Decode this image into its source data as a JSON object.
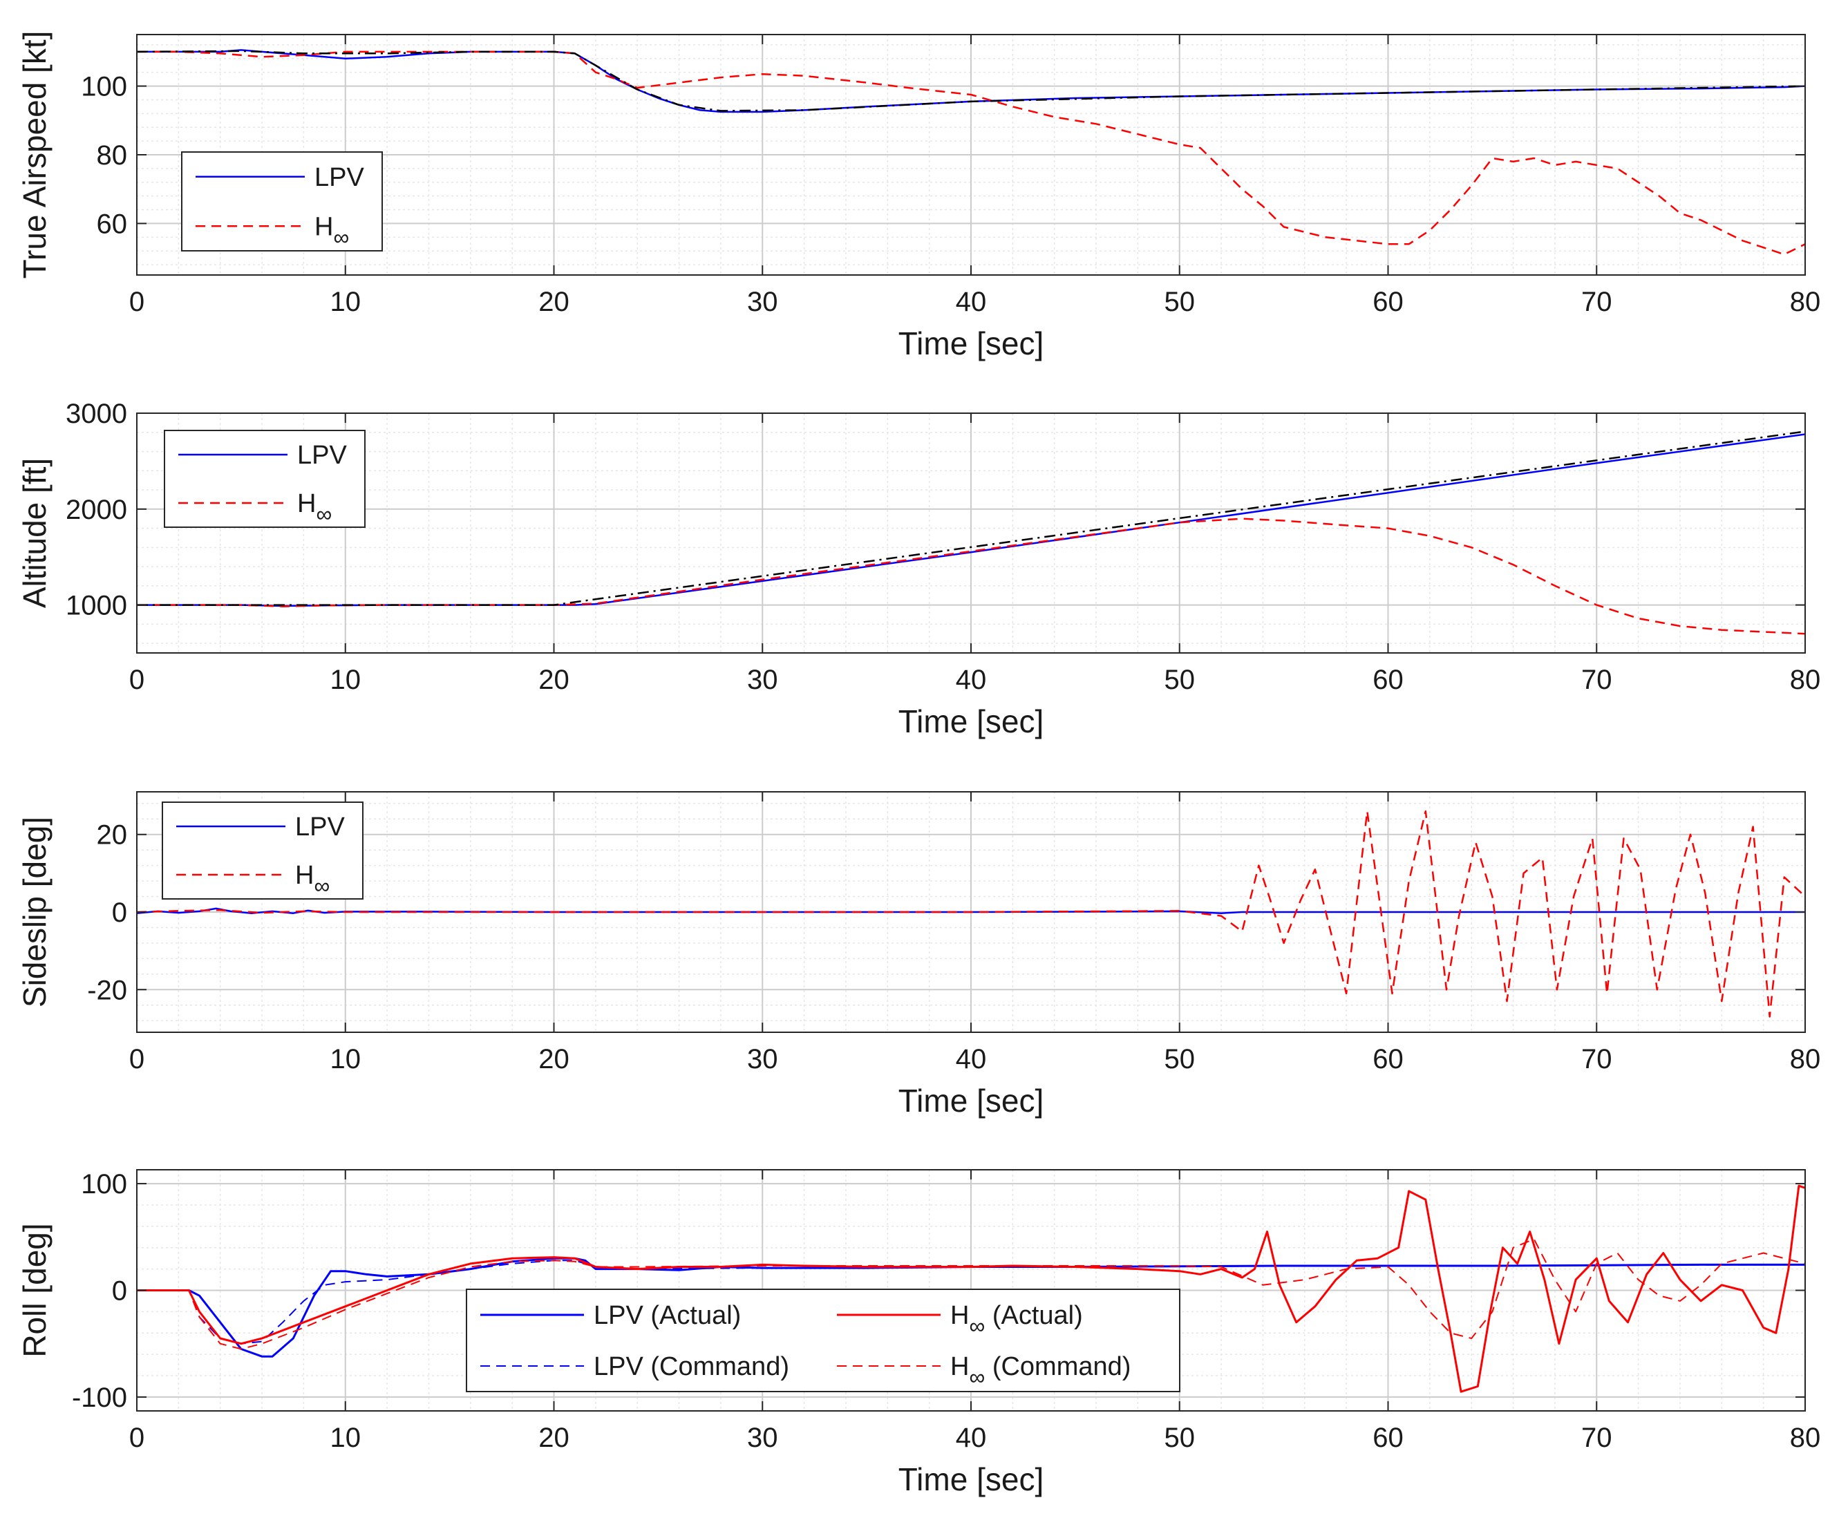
{
  "colors": {
    "lpv": "#0000ff",
    "hinf": "#ff0000",
    "reference": "#000000",
    "grid_major": "#cccccc",
    "grid_minor": "#e6e6e6"
  },
  "chart_data": [
    {
      "type": "line",
      "id": "airspeed",
      "xlabel": "Time [sec]",
      "ylabel": "True Airspeed [kt]",
      "xlim": [
        0,
        80
      ],
      "ylim": [
        45,
        115
      ],
      "xticks": [
        0,
        10,
        20,
        30,
        40,
        50,
        60,
        70,
        80
      ],
      "xtick_labels": [
        "0",
        "10",
        "20",
        "30",
        "40",
        "50",
        "60",
        "70",
        "80"
      ],
      "yticks": [
        60,
        80,
        100
      ],
      "ytick_labels": [
        "60",
        "80",
        "100"
      ],
      "legend": {
        "position": "lower-left",
        "entries": [
          {
            "label": "LPV",
            "series": 0
          },
          {
            "label": "H",
            "sub": "∞",
            "series": 1
          }
        ]
      },
      "series": [
        {
          "name": "LPV",
          "color": "#0000ff",
          "dash": "solid",
          "x": [
            0,
            2,
            4,
            5,
            6,
            8,
            10,
            12,
            14,
            16,
            18,
            20,
            21,
            22,
            23,
            24,
            25,
            26,
            27,
            28,
            30,
            32,
            35,
            40,
            45,
            50,
            55,
            60,
            65,
            70,
            75,
            79,
            80
          ],
          "y": [
            110,
            110,
            110,
            110.5,
            110,
            109,
            108,
            108.5,
            109.5,
            110,
            110,
            110,
            109.5,
            106,
            102,
            99,
            96.5,
            94.5,
            93,
            92.5,
            92.5,
            93,
            94,
            95.5,
            96.5,
            97,
            97.5,
            98,
            98.5,
            99,
            99.3,
            99.7,
            100
          ]
        },
        {
          "name": "H∞",
          "color": "#ff0000",
          "dash": "dashed",
          "x": [
            0,
            2,
            4,
            6,
            8,
            10,
            12,
            14,
            16,
            18,
            20,
            21,
            22,
            23,
            24,
            26,
            28,
            30,
            32,
            35,
            37,
            40,
            42,
            44,
            46,
            48,
            50,
            51,
            52,
            53,
            54,
            55,
            57,
            60,
            61,
            62,
            63,
            64,
            65,
            66,
            67,
            68,
            69,
            70,
            71,
            72,
            73,
            74,
            75,
            76,
            77,
            78,
            79,
            80
          ],
          "y": [
            110,
            110,
            109.5,
            108.5,
            109,
            110,
            110,
            110,
            110,
            110,
            110,
            109.5,
            104,
            102,
            99.5,
            101,
            102.5,
            103.5,
            103,
            101,
            99.5,
            97.5,
            94,
            91,
            89,
            86,
            83,
            82,
            76,
            70,
            65,
            59,
            56,
            54,
            54,
            58,
            64,
            71,
            79,
            78,
            79,
            77,
            78,
            77,
            76,
            72,
            68,
            63,
            61,
            58,
            55,
            53,
            51,
            54
          ]
        },
        {
          "name": "Command",
          "color": "#000000",
          "dash": "dashdot",
          "x": [
            0,
            5,
            8,
            12,
            16,
            20,
            21,
            22,
            24,
            26,
            28,
            32,
            40,
            50,
            60,
            70,
            80
          ],
          "y": [
            110,
            110.2,
            109.5,
            109.5,
            110,
            110,
            109.5,
            106,
            99,
            94.5,
            92.8,
            93,
            95.5,
            97,
            98,
            99,
            100
          ]
        }
      ]
    },
    {
      "type": "line",
      "id": "altitude",
      "xlabel": "Time [sec]",
      "ylabel": "Altitude [ft]",
      "xlim": [
        0,
        80
      ],
      "ylim": [
        500,
        3000
      ],
      "xticks": [
        0,
        10,
        20,
        30,
        40,
        50,
        60,
        70,
        80
      ],
      "xtick_labels": [
        "0",
        "10",
        "20",
        "30",
        "40",
        "50",
        "60",
        "70",
        "80"
      ],
      "yticks": [
        1000,
        2000,
        3000
      ],
      "ytick_labels": [
        "1000",
        "2000",
        "3000"
      ],
      "legend": {
        "position": "upper-left",
        "entries": [
          {
            "label": "LPV",
            "series": 0
          },
          {
            "label": "H",
            "sub": "∞",
            "series": 1
          }
        ]
      },
      "series": [
        {
          "name": "LPV",
          "color": "#0000ff",
          "dash": "solid",
          "x": [
            0,
            5,
            7,
            9,
            12,
            20,
            21,
            22,
            30,
            40,
            50,
            60,
            70,
            80
          ],
          "y": [
            1000,
            1000,
            990,
            995,
            1000,
            1000,
            1000,
            1010,
            1250,
            1550,
            1860,
            2170,
            2480,
            2780
          ]
        },
        {
          "name": "H∞",
          "color": "#ff0000",
          "dash": "dashed",
          "x": [
            0,
            5,
            7,
            9,
            12,
            20,
            22,
            30,
            40,
            50,
            53,
            55,
            58,
            60,
            62,
            64,
            66,
            68,
            70,
            72,
            74,
            76,
            78,
            80
          ],
          "y": [
            1000,
            1000,
            985,
            995,
            1000,
            1000,
            1015,
            1265,
            1560,
            1860,
            1900,
            1880,
            1830,
            1800,
            1720,
            1600,
            1420,
            1200,
            1000,
            860,
            780,
            740,
            720,
            700
          ]
        },
        {
          "name": "Command",
          "color": "#000000",
          "dash": "dashdot",
          "x": [
            0,
            20,
            80
          ],
          "y": [
            1000,
            1000,
            2810
          ]
        }
      ]
    },
    {
      "type": "line",
      "id": "sideslip",
      "xlabel": "Time [sec]",
      "ylabel": "Sideslip [deg]",
      "xlim": [
        0,
        80
      ],
      "ylim": [
        -31,
        31
      ],
      "xticks": [
        0,
        10,
        20,
        30,
        40,
        50,
        60,
        70,
        80
      ],
      "xtick_labels": [
        "0",
        "10",
        "20",
        "30",
        "40",
        "50",
        "60",
        "70",
        "80"
      ],
      "yticks": [
        -20,
        0,
        20
      ],
      "ytick_labels": [
        "-20",
        "0",
        "20"
      ],
      "legend": {
        "position": "upper-left",
        "entries": [
          {
            "label": "LPV",
            "series": 0
          },
          {
            "label": "H",
            "sub": "∞",
            "series": 1
          }
        ]
      },
      "series": [
        {
          "name": "LPV",
          "color": "#0000ff",
          "dash": "solid",
          "x": [
            0,
            1,
            2,
            3,
            3.8,
            4.5,
            5.5,
            6.5,
            7.5,
            8.2,
            9,
            10,
            14,
            20,
            30,
            40,
            50,
            52,
            53,
            80
          ],
          "y": [
            -0.3,
            0.2,
            -0.2,
            0.2,
            0.9,
            0.2,
            -0.3,
            0.2,
            -0.3,
            0.4,
            -0.2,
            0.1,
            0.1,
            0,
            0,
            0,
            0.2,
            -0.3,
            0,
            0
          ]
        },
        {
          "name": "H∞",
          "color": "#ff0000",
          "dash": "dashed",
          "x": [
            0,
            2,
            4,
            6,
            8,
            10,
            20,
            30,
            40,
            50,
            52,
            53,
            53.8,
            54.3,
            55,
            55.8,
            56.5,
            57.2,
            58,
            59,
            60.2,
            61,
            61.8,
            62.8,
            63.4,
            64.2,
            65,
            65.7,
            66.5,
            67.4,
            68.1,
            68.9,
            69.8,
            70.5,
            71.3,
            72.1,
            72.9,
            73.8,
            74.5,
            75.2,
            76,
            76.8,
            77.5,
            78.3,
            79,
            80
          ],
          "y": [
            0,
            0.3,
            0.5,
            -0.2,
            0.2,
            0,
            0,
            0,
            0,
            0.3,
            -1,
            -5,
            12,
            4,
            -8,
            3,
            11,
            -4,
            -21,
            26,
            -21,
            8,
            26,
            -20,
            -1,
            18,
            4,
            -23,
            10,
            14,
            -20,
            4,
            19,
            -21,
            19,
            11,
            -20,
            6,
            20,
            5,
            -23,
            5,
            22,
            -27,
            9,
            4
          ]
        }
      ]
    },
    {
      "type": "line",
      "id": "roll",
      "xlabel": "Time [sec]",
      "ylabel": "Roll [deg]",
      "xlim": [
        0,
        80
      ],
      "ylim": [
        -113,
        113
      ],
      "xticks": [
        0,
        10,
        20,
        30,
        40,
        50,
        60,
        70,
        80
      ],
      "xtick_labels": [
        "0",
        "10",
        "20",
        "30",
        "40",
        "50",
        "60",
        "70",
        "80"
      ],
      "yticks": [
        -100,
        0,
        100
      ],
      "ytick_labels": [
        "-100",
        "0",
        "100"
      ],
      "legend": {
        "position": "lower-center",
        "columns": 2,
        "entries": [
          {
            "label": "LPV (Actual)",
            "series": 0
          },
          {
            "label": "LPV (Command)",
            "series": 1
          },
          {
            "label": "H",
            "sub": "∞",
            "suffix": " (Actual)",
            "series": 2
          },
          {
            "label": "H",
            "sub": "∞",
            "suffix": " (Command)",
            "series": 3
          }
        ]
      },
      "series": [
        {
          "name": "LPV (Actual)",
          "color": "#0000ff",
          "dash": "solid",
          "width": 3,
          "x": [
            0,
            2.5,
            3,
            4,
            5,
            6,
            6.5,
            7.5,
            8.5,
            9.3,
            10,
            11,
            12,
            14,
            16,
            18,
            20,
            21,
            21.5,
            22,
            24,
            26,
            28,
            30,
            32,
            35,
            40,
            45,
            50,
            55,
            60,
            65,
            70,
            75,
            80
          ],
          "y": [
            0,
            0,
            -5,
            -30,
            -55,
            -62,
            -62,
            -45,
            -5,
            18,
            18,
            15,
            13,
            15,
            20,
            27,
            30,
            30,
            28,
            20,
            20,
            19,
            22,
            21,
            21,
            21,
            22,
            22,
            22.5,
            23,
            23,
            23,
            23.5,
            24,
            24
          ]
        },
        {
          "name": "LPV (Command)",
          "color": "#0000ff",
          "dash": "dashed",
          "width": 2,
          "x": [
            0,
            2.5,
            3,
            4,
            5,
            6,
            7,
            8,
            9,
            10,
            12,
            14,
            16,
            18,
            20,
            21,
            22,
            24,
            30,
            40,
            50,
            60,
            70,
            80
          ],
          "y": [
            0,
            0,
            -25,
            -45,
            -50,
            -48,
            -30,
            -10,
            5,
            8,
            10,
            15,
            20,
            25,
            28,
            28,
            22,
            20,
            21,
            22,
            22.5,
            23,
            23.5,
            24
          ]
        },
        {
          "name": "H∞ (Actual)",
          "color": "#ff0000",
          "dash": "solid",
          "width": 3,
          "x": [
            0,
            2.5,
            3,
            4,
            5,
            6,
            8,
            10,
            12,
            14,
            16,
            18,
            20,
            21,
            22,
            24,
            26,
            28,
            30,
            32,
            35,
            38,
            40,
            42,
            45,
            48,
            50,
            51,
            52,
            53,
            53.6,
            54.2,
            54.8,
            55.6,
            56.5,
            57.5,
            58.5,
            59.5,
            60.5,
            61,
            61.8,
            62.4,
            63,
            63.5,
            64.3,
            64.9,
            65.5,
            66.2,
            66.8,
            67.5,
            68.2,
            69,
            70,
            70.6,
            71.5,
            72.4,
            73.2,
            74,
            75,
            76,
            77,
            78,
            78.6,
            79.2,
            79.7,
            80
          ],
          "y": [
            0,
            0,
            -20,
            -45,
            -50,
            -45,
            -30,
            -15,
            0,
            15,
            25,
            30,
            31,
            30,
            22,
            20,
            22,
            22,
            24,
            23,
            22,
            22,
            22,
            23,
            22,
            20,
            18,
            15,
            20,
            12,
            20,
            55,
            5,
            -30,
            -15,
            10,
            28,
            30,
            40,
            93,
            85,
            20,
            -40,
            -95,
            -90,
            -20,
            40,
            25,
            55,
            10,
            -50,
            10,
            30,
            -10,
            -30,
            15,
            35,
            10,
            -10,
            5,
            0,
            -35,
            -40,
            20,
            98,
            96
          ]
        },
        {
          "name": "H∞ (Command)",
          "color": "#ff0000",
          "dash": "dashed",
          "width": 2,
          "x": [
            0,
            2.5,
            3,
            4,
            5,
            6,
            8,
            10,
            12,
            14,
            16,
            18,
            20,
            21,
            22,
            24,
            30,
            40,
            50,
            52,
            54,
            56,
            58,
            60,
            61,
            62,
            63,
            64,
            65,
            66,
            67,
            68,
            69,
            70,
            71,
            72,
            73,
            74,
            75,
            76,
            77,
            78,
            79,
            80
          ],
          "y": [
            0,
            0,
            -25,
            -50,
            -55,
            -50,
            -35,
            -18,
            -3,
            12,
            22,
            27,
            28,
            27,
            22,
            22,
            23,
            23,
            23,
            22,
            5,
            10,
            20,
            22,
            5,
            -20,
            -40,
            -45,
            -20,
            40,
            48,
            10,
            -20,
            25,
            35,
            10,
            -5,
            -10,
            5,
            25,
            30,
            35,
            30,
            25
          ]
        }
      ]
    }
  ]
}
